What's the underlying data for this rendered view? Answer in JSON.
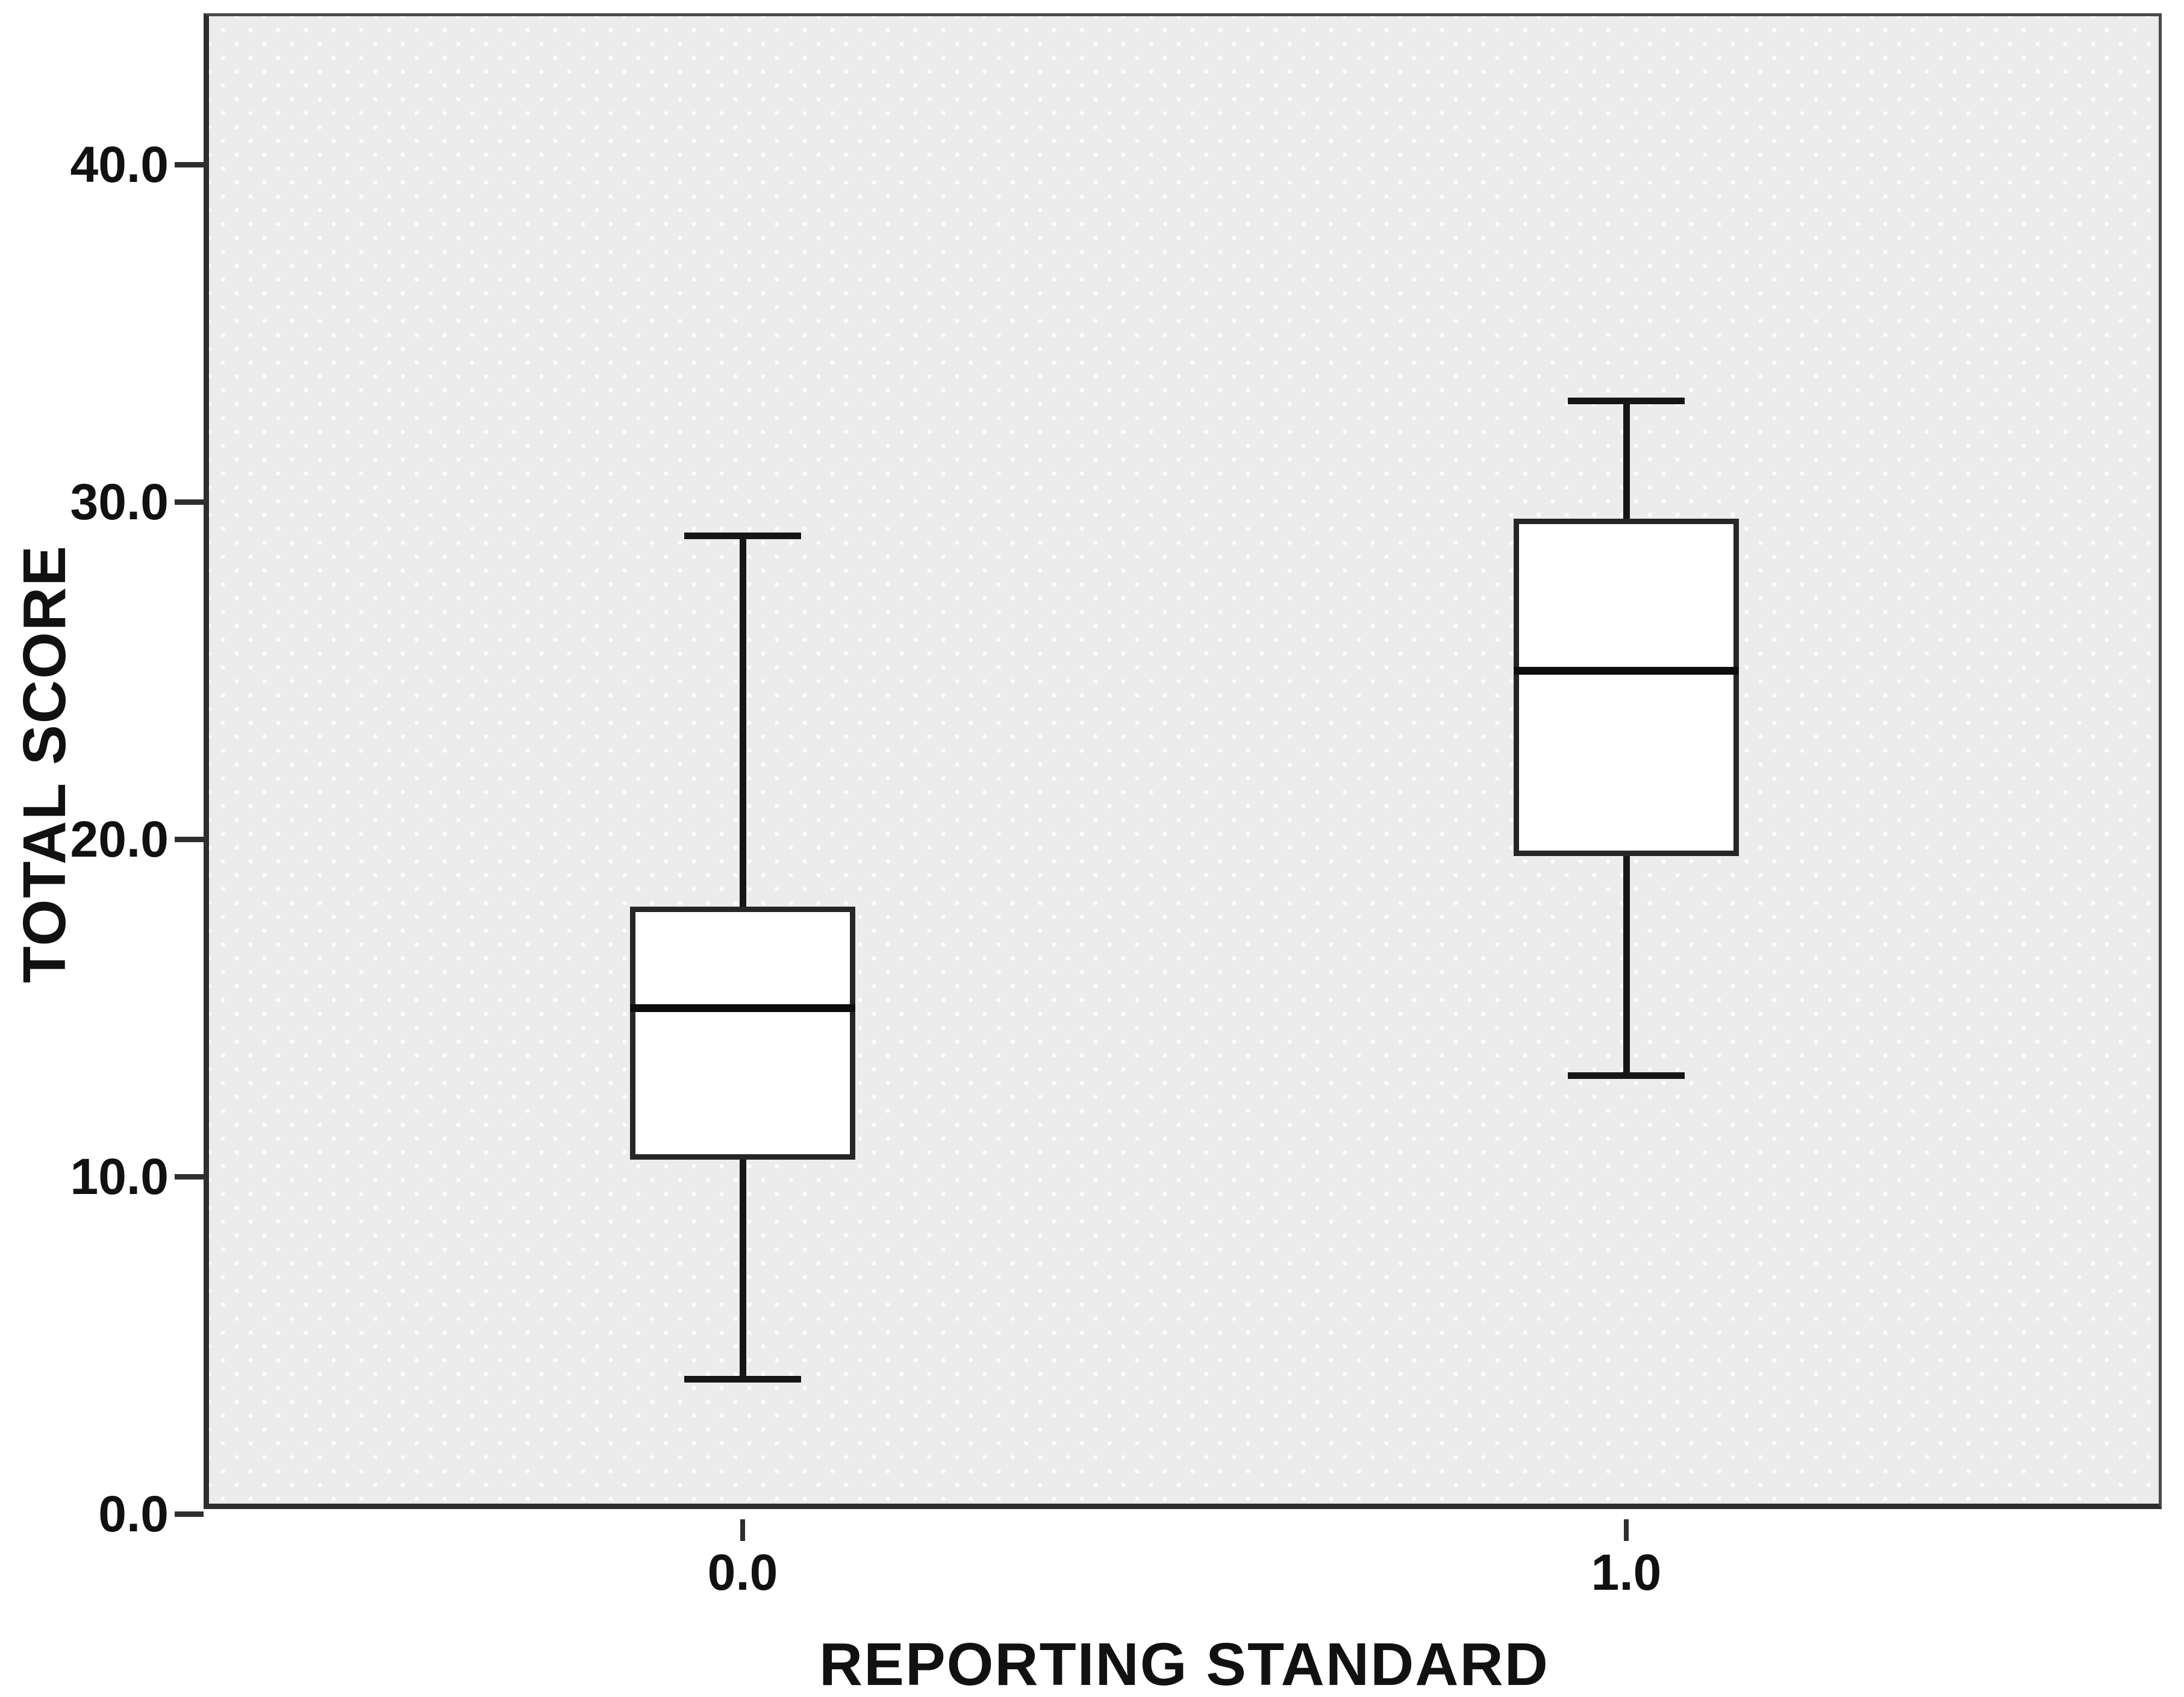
{
  "chart_data": {
    "type": "boxplot",
    "title": "",
    "xlabel": "REPORTING STANDARD",
    "ylabel": "TOTAL SCORE",
    "categories": [
      "0.0",
      "1.0"
    ],
    "yticks": [
      "0.0",
      "10.0",
      "20.0",
      "30.0",
      "40.0"
    ],
    "ytick_values": [
      0,
      10,
      20,
      30,
      40
    ],
    "ylim": [
      0,
      44.4
    ],
    "grid": false,
    "legend": "none",
    "plot_background": "#ececec",
    "box_fill": "#ffffff",
    "line_color": "#161616",
    "series": [
      {
        "category": "0.0",
        "whisker_low": 4,
        "q1": 10.5,
        "median": 15,
        "q3": 18,
        "whisker_high": 29,
        "outliers": []
      },
      {
        "category": "1.0",
        "whisker_low": 13,
        "q1": 19.5,
        "median": 25,
        "q3": 29.5,
        "whisker_high": 33,
        "outliers": []
      }
    ]
  }
}
